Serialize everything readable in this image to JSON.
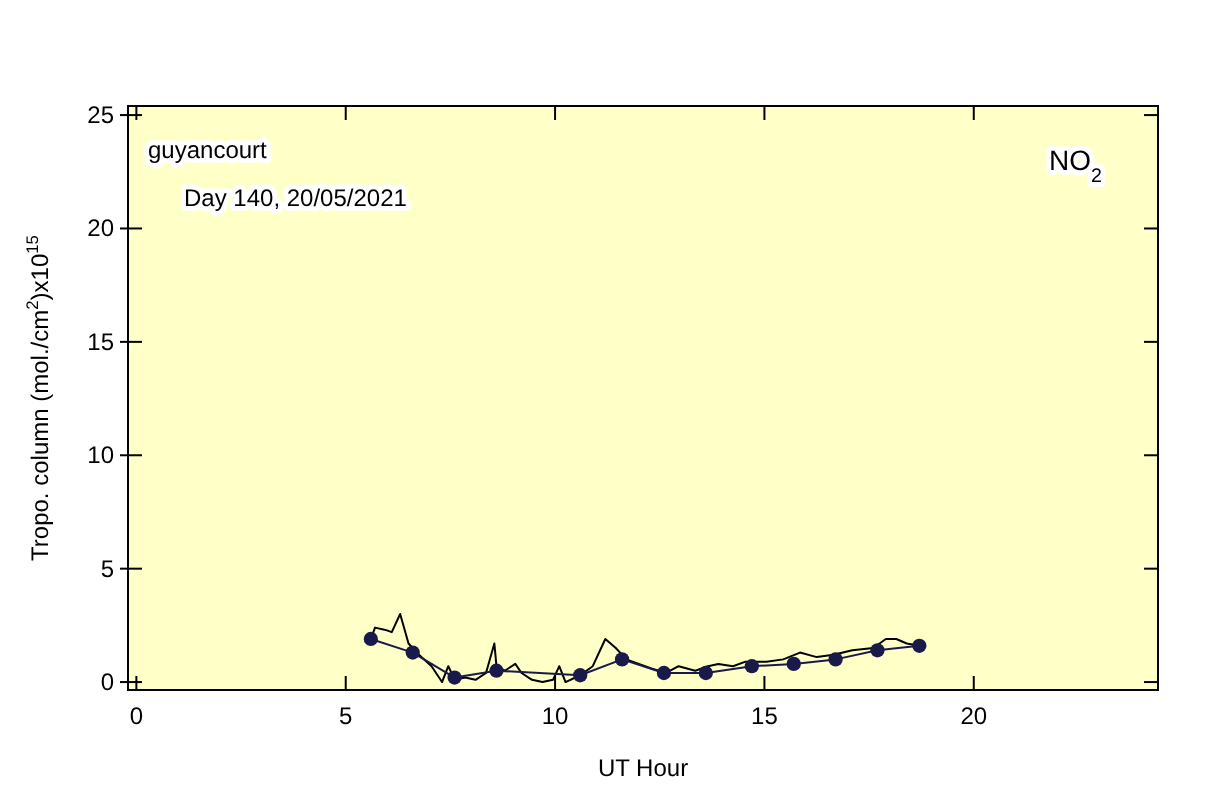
{
  "chart_data": {
    "type": "line",
    "xlabel": "UT Hour",
    "ylabel": "Tropo. column (mol./cm$^{2}$)x10$^{15}$",
    "annotations": [
      "guyancourt",
      "Day 140, 20/05/2021",
      "NO$_{2}$"
    ],
    "xlim": [
      -0.2,
      24.4
    ],
    "ylim": [
      -0.35,
      25.4
    ],
    "xticks": [
      0,
      5,
      10,
      15,
      20
    ],
    "yticks": [
      0,
      5,
      10,
      15,
      20,
      25
    ],
    "grid": false,
    "series": [
      {
        "color": "#000000",
        "marker": "none",
        "x": [
          5.6,
          5.7,
          5.95,
          6.1,
          6.3,
          6.5,
          6.75,
          7.05,
          7.3,
          7.45,
          7.6,
          7.85,
          8.1,
          8.35,
          8.55,
          8.6,
          8.8,
          9.05,
          9.2,
          9.45,
          9.7,
          9.95,
          10.1,
          10.25,
          10.6,
          10.9,
          11.2,
          11.45,
          11.7,
          12.0,
          12.3,
          12.65,
          12.95,
          13.35,
          13.65,
          13.9,
          14.25,
          14.55,
          15.05,
          15.45,
          15.85,
          16.25,
          16.65,
          17.1,
          17.6,
          17.9,
          18.15,
          18.4,
          18.7
        ],
        "values": [
          1.9,
          2.4,
          2.3,
          2.2,
          3.0,
          1.7,
          1.2,
          0.7,
          0,
          0.7,
          0.1,
          0.2,
          0.1,
          0.4,
          1.7,
          0.7,
          0.5,
          0.8,
          0.4,
          0.1,
          0,
          0.1,
          0.7,
          0,
          0.3,
          0.7,
          1.9,
          1.5,
          1.0,
          0.8,
          0.6,
          0.4,
          0.7,
          0.5,
          0.7,
          0.8,
          0.7,
          0.9,
          0.9,
          1.0,
          1.3,
          1.1,
          1.2,
          1.4,
          1.5,
          1.9,
          1.9,
          1.7,
          1.6
        ]
      },
      {
        "color": "#1a1a4a",
        "marker": "circle",
        "x": [
          5.6,
          6.6,
          7.6,
          8.6,
          10.6,
          11.6,
          12.6,
          13.6,
          14.7,
          15.7,
          16.7,
          17.7,
          18.7
        ],
        "values": [
          1.9,
          1.3,
          0.2,
          0.5,
          0.3,
          1.0,
          0.4,
          0.4,
          0.7,
          0.8,
          1.0,
          1.4,
          1.6
        ]
      }
    ]
  }
}
